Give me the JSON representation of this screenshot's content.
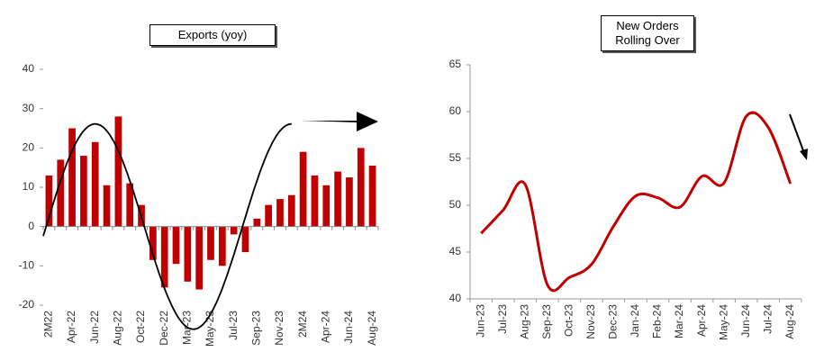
{
  "chart_data": [
    {
      "type": "bar",
      "title": "Exports (yoy)",
      "categories": [
        "2M22",
        null,
        "Apr-22",
        null,
        "Jun-22",
        null,
        "Aug-22",
        null,
        "Oct-22",
        null,
        "Dec-22",
        null,
        "Mar-23",
        null,
        "May-23",
        null,
        "Jul-23",
        null,
        "Sep-23",
        null,
        "Nov-23",
        null,
        "2M24",
        null,
        "Apr-24",
        null,
        "Jun-24",
        null,
        "Aug-24"
      ],
      "values": [
        13,
        17,
        25,
        18,
        21.5,
        10.5,
        28,
        11,
        5.5,
        -8.5,
        -15.5,
        -9.5,
        -14,
        -16,
        -8.5,
        -10,
        -2,
        -6.5,
        2,
        5.5,
        7,
        8,
        19,
        13,
        10.5,
        14,
        12.5,
        20,
        15.5
      ],
      "color": "#c00000",
      "ylim": [
        -20,
        40
      ],
      "yticks": [
        -20,
        -10,
        0,
        10,
        20,
        30,
        40
      ]
    },
    {
      "type": "line",
      "title": "New Orders Rolling Over",
      "categories": [
        "Jun-23",
        "Jul-23",
        "Aug-23",
        "Sep-23",
        "Oct-23",
        "Nov-23",
        "Dec-23",
        "Jan-24",
        "Feb-24",
        "Mar-24",
        "Apr-24",
        "May-24",
        "Jun-24",
        "Jul-24",
        "Aug-24"
      ],
      "values": [
        47,
        49.5,
        52.2,
        41.5,
        42.3,
        43.7,
        47.8,
        51,
        50.8,
        49.8,
        53.1,
        52.4,
        59.5,
        58.3,
        52.3
      ],
      "color": "#c00000",
      "ylim": [
        40,
        65
      ],
      "yticks": [
        40,
        45,
        50,
        55,
        60,
        65
      ]
    }
  ]
}
